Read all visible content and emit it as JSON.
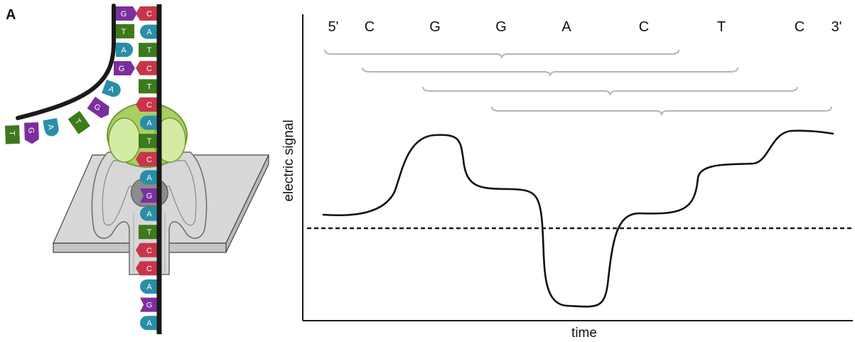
{
  "panel_label": "A",
  "colors": {
    "G": "#7b2f9e",
    "C": "#c8354b",
    "T": "#3d7a1c",
    "A": "#2a8ea8",
    "backbone": "#1a1a1a",
    "enzyme": "#a9cf63",
    "pore": "#d5d5d5",
    "membrane": "#d6d8da",
    "bracket": "#b5b5b5"
  },
  "left_strand": [
    {
      "id": "l1",
      "base": "G"
    },
    {
      "id": "l2",
      "base": "T"
    },
    {
      "id": "l3",
      "base": "A"
    },
    {
      "id": "l4",
      "base": "G"
    },
    {
      "id": "l5",
      "base": "A"
    },
    {
      "id": "l6",
      "base": "G"
    },
    {
      "id": "l7",
      "base": "T"
    },
    {
      "id": "l8",
      "base": "A"
    },
    {
      "id": "l9",
      "base": "G"
    },
    {
      "id": "l10",
      "base": "T"
    }
  ],
  "right_strand": [
    {
      "id": "r1",
      "base": "C"
    },
    {
      "id": "r2",
      "base": "A"
    },
    {
      "id": "r3",
      "base": "T"
    },
    {
      "id": "r4",
      "base": "C"
    },
    {
      "id": "r5",
      "base": "T"
    },
    {
      "id": "r6",
      "base": "C"
    },
    {
      "id": "r7",
      "base": "A"
    },
    {
      "id": "r8",
      "base": "T"
    },
    {
      "id": "r9",
      "base": "C"
    },
    {
      "id": "r10",
      "base": "A"
    },
    {
      "id": "r11",
      "base": "G"
    },
    {
      "id": "r12",
      "base": "A"
    },
    {
      "id": "r13",
      "base": "T"
    },
    {
      "id": "r14",
      "base": "C"
    },
    {
      "id": "r15",
      "base": "C"
    },
    {
      "id": "r16",
      "base": "A"
    },
    {
      "id": "r17",
      "base": "G"
    },
    {
      "id": "r18",
      "base": "A"
    }
  ],
  "sequence": [
    "5'",
    "C",
    "G",
    "G",
    "A",
    "C",
    "T",
    "C",
    "3'"
  ],
  "axis": {
    "xlabel": "time",
    "ylabel": "electric signal"
  }
}
